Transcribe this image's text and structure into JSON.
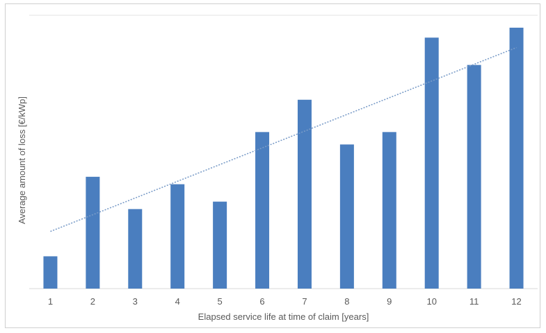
{
  "chart_data": {
    "type": "bar",
    "title": "",
    "xlabel": "Elapsed service life at time of claim [years]",
    "ylabel": "Average amount of loss [€/kWp]",
    "categories": [
      "1",
      "2",
      "3",
      "4",
      "5",
      "6",
      "7",
      "8",
      "9",
      "10",
      "11",
      "12"
    ],
    "values": [
      13,
      45,
      32,
      42,
      35,
      63,
      76,
      58,
      63,
      101,
      90,
      105
    ],
    "ylim": [
      0,
      110
    ],
    "y_ticks_labeled": false,
    "grid": "top gridline only",
    "legend": "none",
    "trendline": {
      "type": "linear",
      "style": "dotted",
      "start": 23,
      "end": 97
    },
    "colors": {
      "bar": "#4a7ebf",
      "trendline": "#7a9cc8",
      "axis": "#d9d9d9",
      "text": "#595959"
    }
  }
}
